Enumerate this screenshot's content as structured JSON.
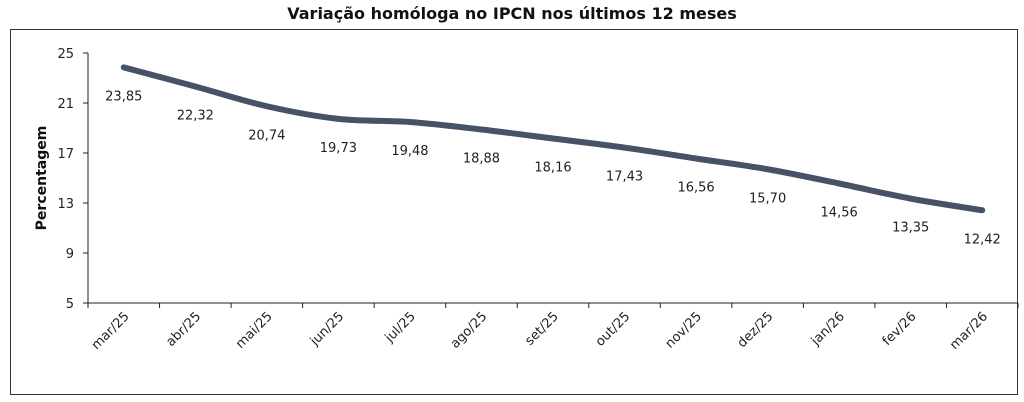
{
  "chart_data": {
    "type": "line",
    "title": "Variação homóloga no IPCN nos últimos 12 meses",
    "xlabel": "",
    "ylabel": "Percentagem",
    "ylim": [
      5,
      25
    ],
    "yticks": [
      5,
      9,
      13,
      17,
      21,
      25
    ],
    "grid": false,
    "categories": [
      "mar/25",
      "abr/25",
      "mai/25",
      "jun/25",
      "jul/25",
      "ago/25",
      "set/25",
      "out/25",
      "nov/25",
      "dez/25",
      "jan/26",
      "fev/26",
      "mar/26"
    ],
    "values": [
      23.85,
      22.32,
      20.74,
      19.73,
      19.48,
      18.88,
      18.16,
      17.43,
      16.56,
      15.7,
      14.56,
      13.35,
      12.42
    ],
    "data_labels": [
      "23,85",
      "22,32",
      "20,74",
      "19,73",
      "19,48",
      "18,88",
      "18,16",
      "17,43",
      "16,56",
      "15,70",
      "14,56",
      "13,35",
      "12,42"
    ],
    "line_color": "#465366",
    "smooth": true
  }
}
